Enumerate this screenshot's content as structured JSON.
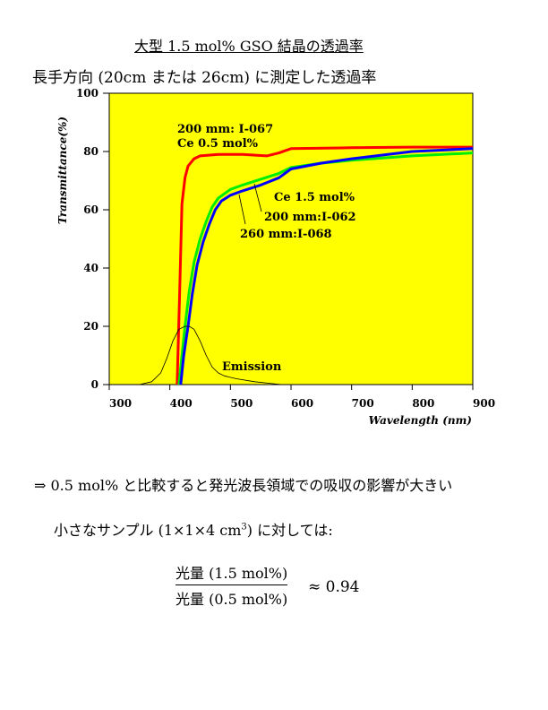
{
  "title": "大型 1.5 mol% GSO 結晶の透過率",
  "subtitle": "長手方向 (20cm または 26cm) に測定した透過率",
  "chart_data": {
    "type": "line",
    "xlabel": "Wavelength (nm)",
    "ylabel": "Transmittance(%)",
    "xlim": [
      300,
      900
    ],
    "ylim": [
      0,
      100
    ],
    "xticks": [
      300,
      400,
      500,
      600,
      700,
      800,
      900
    ],
    "yticks": [
      0,
      20,
      40,
      60,
      80,
      100
    ],
    "background": "#ffff00",
    "series": [
      {
        "name": "200 mm: I-067 Ce 0.5 mol%",
        "color": "#ff0000",
        "x": [
          412,
          416,
          420,
          425,
          430,
          440,
          450,
          480,
          520,
          560,
          580,
          600,
          700,
          800,
          900
        ],
        "y": [
          0,
          30,
          62,
          71,
          75,
          77.5,
          78.5,
          79,
          79,
          78.5,
          79.5,
          81,
          81.3,
          81.5,
          81.5
        ]
      },
      {
        "name": "200 mm:I-062",
        "color": "#00ee00",
        "x": [
          415,
          420,
          425,
          432,
          440,
          450,
          460,
          470,
          480,
          500,
          520,
          550,
          580,
          600,
          650,
          700,
          800,
          900
        ],
        "y": [
          0,
          10,
          20,
          32,
          42,
          50,
          56,
          61,
          64,
          67,
          68.5,
          70.5,
          72.5,
          74.5,
          76,
          77,
          78.5,
          79.5
        ]
      },
      {
        "name": "260 mm:I-068",
        "color": "#0000ff",
        "x": [
          418,
          423,
          430,
          437,
          445,
          455,
          465,
          475,
          485,
          500,
          520,
          550,
          580,
          600,
          650,
          700,
          800,
          900
        ],
        "y": [
          0,
          10,
          20,
          31,
          41,
          49,
          55,
          60,
          63,
          65,
          66.5,
          68.5,
          71,
          74,
          76,
          77.5,
          80,
          81
        ]
      },
      {
        "name": "Emission",
        "color": "#000000",
        "x": [
          350,
          370,
          385,
          395,
          405,
          415,
          425,
          432,
          440,
          450,
          460,
          470,
          480,
          490,
          510,
          540,
          570,
          585
        ],
        "y": [
          0,
          1,
          4,
          9,
          15,
          19,
          20,
          20,
          19,
          15,
          10,
          6,
          4,
          3,
          2,
          1,
          0.3,
          0
        ]
      }
    ],
    "annotations": [
      "200 mm: I-067",
      "Ce 0.5 mol%",
      "Ce 1.5 mol%",
      "200 mm:I-062",
      "260 mm:I-068",
      "Emission"
    ]
  },
  "line1": "⇒ 0.5 mol% と比較すると発光波長領域での吸収の影響が大きい",
  "line2_pre": "小さなサンプル (1×1×4 cm",
  "line2_sup": "3",
  "line2_post": ") に対しては:",
  "fraction": {
    "numerator": "光量 (1.5 mol%)",
    "denominator": "光量 (0.5 mol%)",
    "result": "≈ 0.94"
  }
}
